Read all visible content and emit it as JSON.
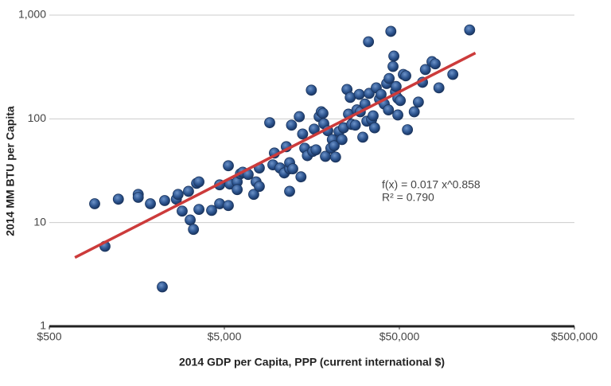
{
  "chart_data": {
    "type": "scatter",
    "x_label": "2014 GDP per Capita, PPP (current international $)",
    "y_label": "2014 MM BTU per Capita",
    "xlim": [
      500,
      500000
    ],
    "ylim": [
      1,
      1000
    ],
    "x_log": true,
    "y_log": true,
    "grid": true,
    "xticks": [
      {
        "value": 500,
        "label": "$500"
      },
      {
        "value": 5000,
        "label": "$5,000"
      },
      {
        "value": 50000,
        "label": "$50,000"
      },
      {
        "value": 500000,
        "label": "$500,000"
      }
    ],
    "yticks": [
      1,
      10,
      100,
      {
        "value": 1000,
        "label": "1,000"
      }
    ],
    "color": "#2d5590",
    "x": [
      908,
      1040,
      1240,
      1610,
      1610,
      1890,
      2210,
      2280,
      2660,
      2720,
      2870,
      3120,
      3190,
      3330,
      3470,
      3580,
      3580,
      4230,
      4700,
      4700,
      5270,
      5270,
      5380,
      5920,
      5920,
      6180,
      6370,
      6840,
      7360,
      7590,
      7920,
      7920,
      9080,
      9470,
      9660,
      10400,
      11000,
      11300,
      11800,
      11800,
      11800,
      12100,
      12300,
      13400,
      13700,
      14000,
      14400,
      14900,
      15700,
      16000,
      16300,
      16700,
      17400,
      17900,
      18300,
      18500,
      18900,
      19500,
      20300,
      20700,
      21200,
      21600,
      22600,
      23500,
      24000,
      25100,
      25600,
      26200,
      26700,
      28000,
      28600,
      29500,
      29900,
      30900,
      31800,
      32600,
      33300,
      33600,
      34700,
      35400,
      36100,
      36900,
      38500,
      39300,
      41000,
      42300,
      43300,
      43700,
      44700,
      46000,
      46500,
      47500,
      47900,
      49000,
      49000,
      50600,
      52700,
      54400,
      55600,
      60800,
      64200,
      67800,
      70400,
      76800,
      80100,
      84100,
      101000,
      126000
    ],
    "values": [
      15.2,
      5.9,
      16.8,
      18.7,
      17.5,
      15.2,
      2.4,
      16.3,
      16.8,
      18.7,
      12.9,
      20.0,
      10.6,
      8.6,
      23.9,
      24.7,
      13.4,
      13.1,
      15.2,
      23.1,
      35.3,
      14.6,
      23.5,
      24.7,
      20.8,
      29.5,
      30.6,
      29.1,
      18.7,
      24.7,
      33.6,
      22.3,
      91.8,
      36.0,
      46.8,
      33.6,
      30.1,
      53.9,
      33.0,
      20.0,
      37.8,
      86.9,
      33.0,
      105,
      27.6,
      71.4,
      52.1,
      44.2,
      189,
      48.5,
      79.6,
      50.3,
      105,
      117,
      113,
      89.8,
      43.5,
      76.8,
      52.1,
      63.1,
      55.0,
      42.8,
      75.5,
      63.1,
      82.0,
      192,
      111,
      161,
      88.4,
      86.9,
      122,
      172,
      117,
      66.6,
      139,
      95,
      553,
      176,
      98.5,
      107,
      82.0,
      199,
      155,
      172,
      139,
      219,
      122,
      245,
      697,
      320,
      403,
      182,
      205,
      158,
      109,
      150,
      268,
      260,
      78.5,
      117,
      145,
      225,
      299,
      356,
      339,
      199,
      268,
      720
    ],
    "trendline": {
      "x": [
        700,
        136000
      ],
      "values": [
        4.6,
        432
      ],
      "color": "#cc3b3b"
    },
    "annotations": [
      "f(x) = 0.017 x^0.858",
      "R² = 0.790"
    ]
  }
}
